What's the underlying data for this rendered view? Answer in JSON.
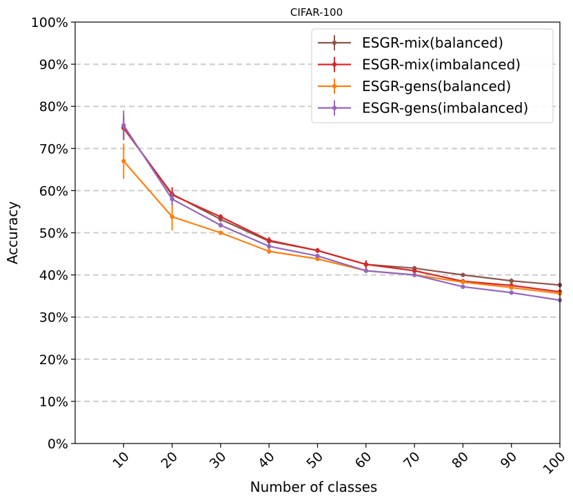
{
  "chart_data": {
    "type": "line",
    "title": "CIFAR-100",
    "xlabel": "Number of classes",
    "ylabel": "Accuracy",
    "x": [
      10,
      20,
      30,
      40,
      50,
      60,
      70,
      80,
      90,
      100
    ],
    "xticks": [
      "10",
      "20",
      "30",
      "40",
      "50",
      "60",
      "70",
      "80",
      "90",
      "100"
    ],
    "yticks": [
      "0%",
      "10%",
      "20%",
      "30%",
      "40%",
      "50%",
      "60%",
      "70%",
      "80%",
      "90%",
      "100%"
    ],
    "ylim": [
      0,
      100
    ],
    "grid": "horizontal dashed",
    "legend_position": "top-right",
    "series": [
      {
        "name": "ESGR-mix(balanced)",
        "color": "#8c564b",
        "values": [
          74.8,
          59.2,
          53.2,
          48.0,
          45.8,
          42.5,
          41.6,
          40.0,
          38.6,
          37.6
        ],
        "errors": [
          2.5,
          1.2,
          0.6,
          0.6,
          0.5,
          0.6,
          0.5,
          0.4,
          0.6,
          0.4
        ]
      },
      {
        "name": "ESGR-mix(imbalanced)",
        "color": "#d62728",
        "values": [
          75.0,
          59.0,
          53.8,
          48.2,
          45.8,
          42.5,
          41.0,
          38.5,
          37.5,
          36.0
        ],
        "errors": [
          3.0,
          1.8,
          0.6,
          0.8,
          0.6,
          1.0,
          0.5,
          0.5,
          0.5,
          0.5
        ]
      },
      {
        "name": "ESGR-gens(balanced)",
        "color": "#ff7f0e",
        "values": [
          67.0,
          53.8,
          50.0,
          45.6,
          43.8,
          41.0,
          40.0,
          38.3,
          37.0,
          35.6
        ],
        "errors": [
          4.2,
          3.2,
          0.5,
          0.6,
          0.5,
          0.5,
          0.4,
          0.4,
          0.4,
          0.4
        ]
      },
      {
        "name": "ESGR-gens(imbalanced)",
        "color": "#9467bd",
        "values": [
          75.5,
          58.0,
          51.8,
          46.8,
          44.5,
          41.0,
          40.0,
          37.2,
          35.8,
          34.0
        ],
        "errors": [
          3.5,
          1.5,
          0.6,
          0.6,
          0.5,
          0.5,
          0.4,
          0.4,
          0.4,
          0.4
        ]
      }
    ]
  }
}
